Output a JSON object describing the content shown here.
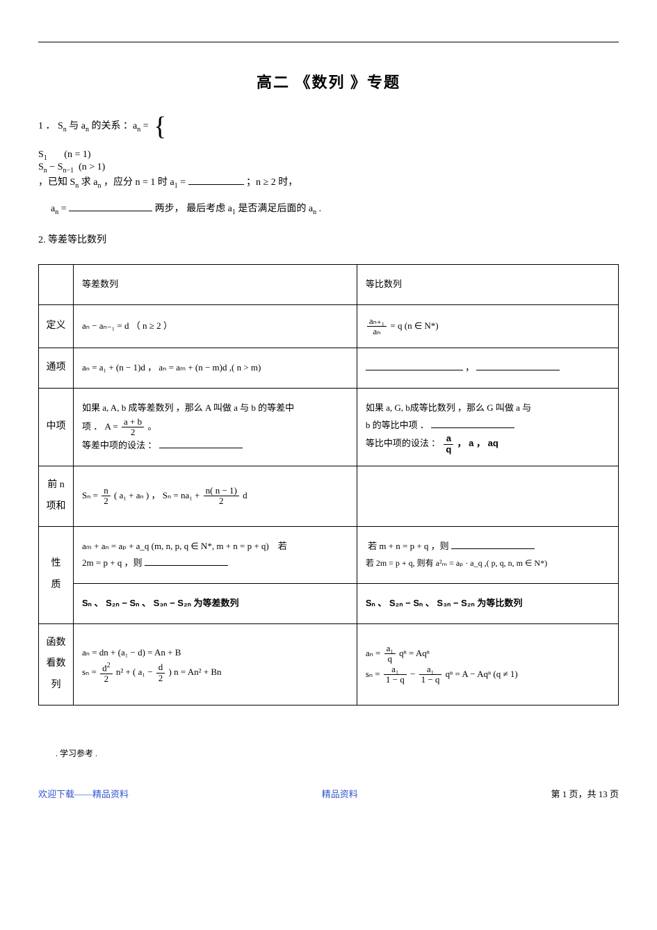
{
  "title": "高二 《数列 》专题",
  "section1": {
    "label": "1 ．",
    "rel_text": "S",
    "rel_text2": " 与 a",
    "rel_text3": " 的关系 ：a",
    "eq": " = ",
    "case1_lhs": "S",
    "case1_cond": "(n = 1)",
    "case2_lhs": "S",
    "case2_mid": " − S",
    "case2_cond": "(n > 1)",
    "tail1": "，已知 S",
    "tail2": " 求 a",
    "tail3": "，应分 n = 1 时 a",
    "tail4": " = ",
    "tail5": "；n ≥ 2 时，",
    "line2_a": "a",
    "line2_b": " = ",
    "line2_c": "两步， 最后考虑  a",
    "line2_d": " 是否满足后面的  a",
    "line2_e": " ."
  },
  "section2_heading": "2. 等差等比数列",
  "table": {
    "head_arith": "等差数列",
    "head_geom": "等比数列",
    "rows": {
      "def": {
        "label": "定义",
        "arith": "aₙ − aₙ₋₁ = d （ n ≥ 2 ）",
        "geom_num": "aₙ₊₁",
        "geom_den": "aₙ",
        "geom_tail": " = q (n ∈ N*)"
      },
      "gen": {
        "label": "通项",
        "arith": "aₙ = a₁ + (n − 1)d ， aₙ = aₘ + (n − m)d ,( n > m)",
        "geom_sep": "，"
      },
      "mid": {
        "label": "中项",
        "arith_l1": "如果 a, A, b 成等差数列 ，那么 A 叫做 a 与 b 的等差中",
        "arith_l2a": "项 ． A = ",
        "arith_frac_num": "a + b",
        "arith_frac_den": "2",
        "arith_l2b": " 。",
        "arith_l3": "等差中项的设法 ：",
        "geom_l1": "如果 a, G, b成等比数列 ，那么 G 叫做 a 与",
        "geom_l2": "b 的等比中项 ．",
        "geom_l3a": "等比中项的设法 ：",
        "geom_frac_num": "a",
        "geom_frac_den": "q",
        "geom_l3b": " ， a ， aq"
      },
      "sum": {
        "label": "前 n\n项和",
        "arith_a": "Sₙ = ",
        "arith_f1_num": "n",
        "arith_f1_den": "2",
        "arith_b": "( a₁ + aₙ ) ， Sₙ = na₁ + ",
        "arith_f2_num": "n( n − 1)",
        "arith_f2_den": "2",
        "arith_c": " d"
      },
      "prop": {
        "label": "性\n质",
        "arith_l1": "aₘ + aₙ = aₚ + a_q (m, n, p, q ∈ N*, m + n = p + q) 若",
        "arith_l2": "2m = p + q ，则",
        "geom_l1a": "若 m + n = p + q ，则",
        "geom_l2": "若 2m = p + q, 则有 a²ₘ = aₚ · a_q ,( p, q, n, m ∈ N*)"
      },
      "ssum": {
        "arith": "Sₙ 、 S₂ₙ − Sₙ 、 S₃ₙ − S₂ₙ 为等差数列",
        "geom": "Sₙ 、 S₂ₙ − Sₙ 、 S₃ₙ − S₂ₙ 为等比数列"
      },
      "func": {
        "label": "函数\n看数\n列",
        "arith_l1": "aₙ = dn + (a₁ − d) = An + B",
        "arith_l2a": "sₙ = ",
        "arith_f1_num": "d",
        "arith_f1_den": "2",
        "arith_l2b": " n² + ( a₁ − ",
        "arith_f2_num": "d",
        "arith_f2_den": "2",
        "arith_l2c": " ) n = An² + Bn",
        "geom_l1a": "aₙ = ",
        "geom_f1_num": "a₁",
        "geom_f1_den": "q",
        "geom_l1b": " qⁿ = Aqⁿ",
        "geom_l2a": "sₙ = ",
        "geom_f2_num": "a₁",
        "geom_f2_den": "1 − q",
        "geom_l2b": " − ",
        "geom_f3_num": "a₁",
        "geom_f3_den": "1 − q",
        "geom_l2c": " qⁿ = A − Aqⁿ (q ≠ 1)"
      }
    }
  },
  "footer": {
    "ref": ".  学习参考     .",
    "left": "欢迎下载——精品资料",
    "center": "精品资料",
    "right": "第 1 页，共 13 页"
  }
}
